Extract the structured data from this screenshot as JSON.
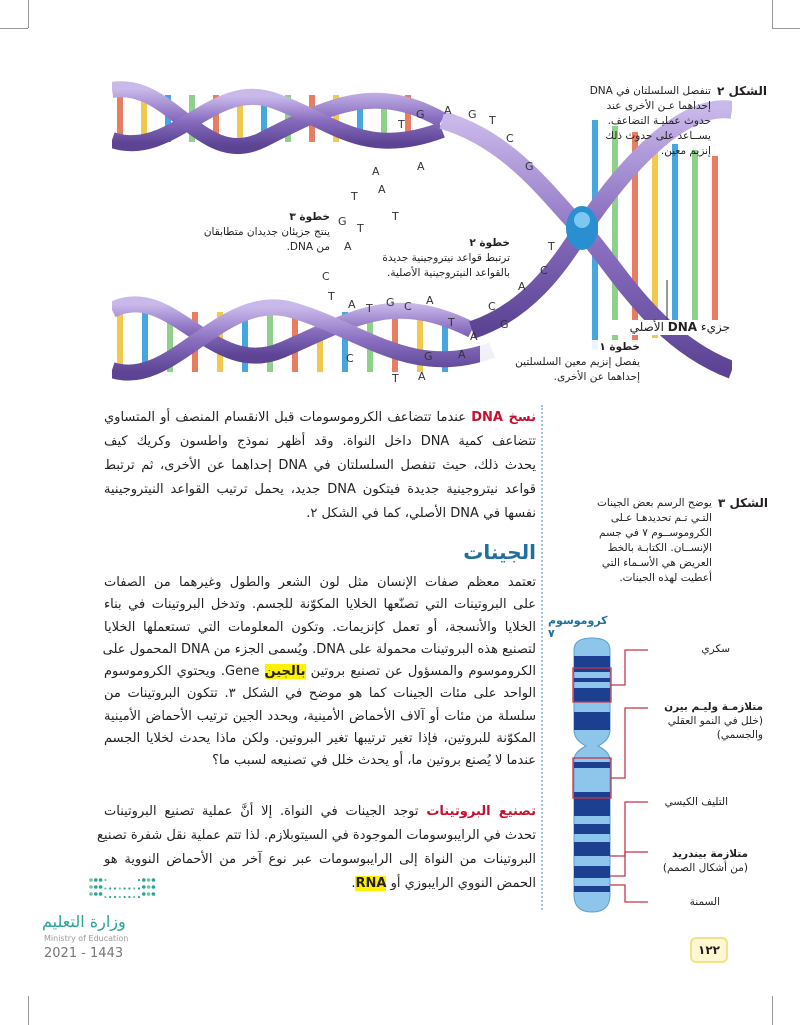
{
  "figure2": {
    "label": "الشكل ٢",
    "caption_lines": [
      "تنفصل السلسلتان في DNA",
      "إحداهما عـن الأخرى عند",
      "حدوث عمليـة التضاعف.",
      "يســاعد على حدوث ذلك",
      "إنزيم معين."
    ]
  },
  "dna_labels": {
    "step3_title": "خطوة ٣",
    "step3_lines": [
      "ينتج جزيئان جديدان متطابقان",
      "من DNA."
    ],
    "step2_title": "خطوة ٢",
    "step2_lines": [
      "ترتبط قواعد نيتروجينية جديدة",
      "بالقواعد النيتروجينية الأصلية."
    ],
    "original_prefix": "جزيء",
    "original_bold": "DNA",
    "original_suffix": "الأصلي",
    "step1_title": "خطوة ١",
    "step1_lines": [
      "يفصل إنزيم معين السلسلتين",
      "إحداهما عن الأخرى."
    ],
    "bases": [
      "T",
      "G",
      "A",
      "G",
      "T",
      "C",
      "G",
      "A",
      "A",
      "T",
      "G",
      "T",
      "A",
      "C",
      "T",
      "A",
      "T",
      "A",
      "T",
      "G",
      "C",
      "A",
      "T",
      "G",
      "A",
      "C",
      "A",
      "C",
      "T",
      "A",
      "G",
      "A",
      "C",
      "T"
    ]
  },
  "para1": {
    "term": "نسخ DNA",
    "lines": [
      "عندما تتضاعف الكروموسومات قبل الانقسام المنصف أو المتساوي",
      "تتضاعف كمية DNA داخل النواة. وقد أظهر نموذج واطسون وكريك كيف",
      "يحدث ذلك، حيث تنفصل السلسلتان في DNA إحداهما عن الأخرى، ثم ترتبط",
      "قواعد نيتروجينية جديدة فيتكون DNA جديد، يحمل ترتيب القواعد النيتروجينية",
      "نفسها في DNA الأصلي، كما في الشكل ٢."
    ]
  },
  "heading_genes": "الجينات",
  "para2": {
    "lines": [
      "تعتمد معظم صفات الإنسان مثل لون الشعر والطول وغيرهما من الصفات",
      "على البروتينات التي تصنّعها الخلايا المكوّنة للجسم. وتدخل البروتينات في بناء",
      "الخلايا والأنسجة، أو تعمل كإنزيمات. وتكون المعلومات التي تستعملها الخلايا",
      "لتصنيع هذه البروتينات محمولة على DNA. ويُسمى الجزء من DNA المحمول على"
    ],
    "line5_before": "الكروموسوم والمسؤول عن تصنيع بروتين",
    "line5_highlight": "بالجين",
    "line5_after": "Gene. ويحتوي الكروموسوم",
    "lines_rest": [
      "الواحد على مئات الجينات كما هو موضح في الشكل ٣. تتكون البروتينات من",
      "سلسلة من مئات أو آلاف الأحماض الأمينية، ويحدد الجين ترتيب الأحماض الأمينية",
      "المكوّنة للبروتين، فإذا تغير ترتيبها تغير البروتين. ولكن ماذا يحدث لخلايا الجسم",
      "عندما لا يُصنع بروتين ما، أو يحدث خلل في تصنيعه لسبب ما؟"
    ]
  },
  "para3": {
    "term": "تصنيع البروتينات",
    "lines": [
      "توجد الجينات في النواة. إلا أنَّ عملية تصنيع البروتينات",
      "تحدث في الرايبوسومات الموجودة في السيتوبلازم. لذا تتم عملية نقل شفرة تصنيع",
      "البروتينات من النواة إلى الرايبوسومات عبر نوع آخر من الأحماض النووية هو"
    ],
    "last_before": "الحمض النووي الرايبوزي أو",
    "last_highlight": "RNA",
    "last_after": "."
  },
  "figure3": {
    "label": "الشكل ٣",
    "caption_lines": [
      "يوضح الرسم بعض الجينات",
      "التـي تـم تحديدهـا عـلى",
      "الكروموســوم ٧ في جسم",
      "الإنســان. الكتابـة بالخط",
      "العريض هي الأسـماء التي",
      "أعطيت لهذه الجينات."
    ],
    "chromosome_title": "كروموسوم ٧",
    "genes": [
      {
        "lines": [
          "سكري"
        ]
      },
      {
        "lines": [
          "متلازمـة وليـم بيرن",
          "(خلل في النمو العقلي",
          "والجسمي)"
        ]
      },
      {
        "lines": [
          "التليف الكيسي"
        ]
      },
      {
        "lines": [
          "متلازمة بيندريد",
          "(من أشكال الصمم)"
        ]
      },
      {
        "lines": [
          "السمنة"
        ]
      }
    ]
  },
  "footer": {
    "ministry_ar": "وزارة التعليم",
    "ministry_en": "Ministry of Education",
    "year": "2021 - 1443",
    "page_number": "١٢٢"
  },
  "colors": {
    "term_red": "#c8102e",
    "heading_blue": "#1f6f9f",
    "highlight": "#fff200",
    "dna_purple": "#8a6fc0",
    "chromosome_dark": "#1d3f8f",
    "chromosome_light": "#8ec5ea",
    "gene_line": "#c8354a"
  }
}
